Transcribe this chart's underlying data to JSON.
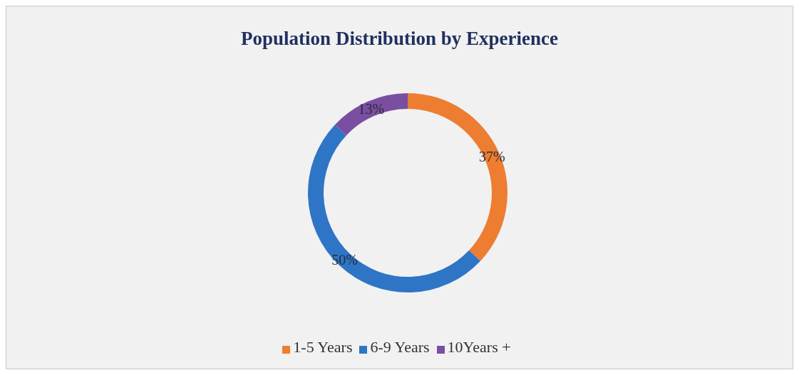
{
  "chart_data": {
    "type": "donut",
    "title": "Population Distribution by Experience",
    "categories": [
      "1-5 Years",
      "6-9 Years",
      "10Years +"
    ],
    "values": [
      37,
      50,
      13
    ],
    "colors": [
      "#ed7d31",
      "#2e75c6",
      "#7a4ea0"
    ],
    "value_labels": [
      "37%",
      "50%",
      "13%"
    ],
    "legend": "bottom"
  }
}
